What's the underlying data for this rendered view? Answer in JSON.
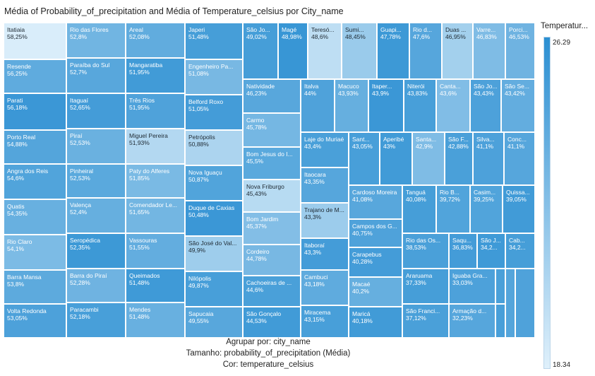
{
  "title": "Média of Probability_of_precipitation and Média of Temperature_celsius por City_name",
  "caption": {
    "group_by": "Agrupar por: city_name",
    "size": "Tamanho: probability_of_precipitation (Média)",
    "color": "Cor: temperature_celsius"
  },
  "legend": {
    "title": "Temperatur...",
    "max_label": "26.29",
    "min_label": "18.34",
    "color_high": "#2b8fd2",
    "color_low": "#dff0fb"
  },
  "chart_data": {
    "type": "treemap",
    "title": "Média of Probability_of_precipitation and Média of Temperature_celsius por City_name",
    "size_measure": "probability_of_precipitation (Média)",
    "color_measure": "temperature_celsius",
    "color_range": [
      18.34,
      26.29
    ],
    "items": [
      {
        "name": "Itatiaia",
        "label": "Itatiaia",
        "value_label": "58,25%",
        "value": 58.25,
        "color": 18.6
      },
      {
        "name": "Resende",
        "label": "Resende",
        "value_label": "56,25%",
        "value": 56.25,
        "color": 24.0
      },
      {
        "name": "Parati",
        "label": "Parati",
        "value_label": "56,18%",
        "value": 56.18,
        "color": 25.6
      },
      {
        "name": "Porto Real",
        "label": "Porto Real",
        "value_label": "54,88%",
        "value": 54.88,
        "color": 24.5
      },
      {
        "name": "Angra dos Reis",
        "label": "Angra dos Reis",
        "value_label": "54,6%",
        "value": 54.6,
        "color": 24.6
      },
      {
        "name": "Quatis",
        "label": "Quatis",
        "value_label": "54,35%",
        "value": 54.35,
        "color": 23.6
      },
      {
        "name": "Rio Claro",
        "label": "Rio Claro",
        "value_label": "54,1%",
        "value": 54.1,
        "color": 22.7
      },
      {
        "name": "Barra Mansa",
        "label": "Barra Mansa",
        "value_label": "53,8%",
        "value": 53.8,
        "color": 24.1
      },
      {
        "name": "Volta Redonda",
        "label": "Volta Redonda",
        "value_label": "53,05%",
        "value": 53.05,
        "color": 24.8
      },
      {
        "name": "Rio das Flores",
        "label": "Rio das Flores",
        "value_label": "52,8%",
        "value": 52.8,
        "color": 23.2
      },
      {
        "name": "Paraíba do Sul",
        "label": "Paraíba do Sul",
        "value_label": "52,7%",
        "value": 52.7,
        "color": 24.3
      },
      {
        "name": "Itaguaí",
        "label": "Itaguaí",
        "value_label": "52,65%",
        "value": 52.65,
        "color": 25.2
      },
      {
        "name": "Piraí",
        "label": "Piraí",
        "value_label": "52,53%",
        "value": 52.53,
        "color": 23.5
      },
      {
        "name": "Pinheiral",
        "label": "Pinheiral",
        "value_label": "52,53%",
        "value": 52.53,
        "color": 24.2
      },
      {
        "name": "Valença",
        "label": "Valença",
        "value_label": "52,4%",
        "value": 52.4,
        "color": 23.7
      },
      {
        "name": "Seropédica",
        "label": "Seropédica",
        "value_label": "52,35%",
        "value": 52.35,
        "color": 25.5
      },
      {
        "name": "Barra do Piraí",
        "label": "Barra do Piraí",
        "value_label": "52,28%",
        "value": 52.28,
        "color": 23.3
      },
      {
        "name": "Paracambi",
        "label": "Paracambi",
        "value_label": "52,18%",
        "value": 52.18,
        "color": 25.0
      },
      {
        "name": "Areal",
        "label": "Areal",
        "value_label": "52,08%",
        "value": 52.08,
        "color": 23.9
      },
      {
        "name": "Mangaratiba",
        "label": "Mangaratiba",
        "value_label": "51,95%",
        "value": 51.95,
        "color": 25.3
      },
      {
        "name": "Três Rios",
        "label": "Três Rios",
        "value_label": "51,95%",
        "value": 51.95,
        "color": 24.7
      },
      {
        "name": "Miguel Pereira",
        "label": "Miguel Pereira",
        "value_label": "51,93%",
        "value": 51.93,
        "color": 20.3
      },
      {
        "name": "Paty do Alferes",
        "label": "Paty do Alferes",
        "value_label": "51,85%",
        "value": 51.85,
        "color": 22.8
      },
      {
        "name": "Comendador Levy Gasparian",
        "label": "Comendador Le...",
        "value_label": "51,65%",
        "value": 51.65,
        "color": 23.1
      },
      {
        "name": "Vassouras",
        "label": "Vassouras",
        "value_label": "51,55%",
        "value": 51.55,
        "color": 23.8
      },
      {
        "name": "Queimados",
        "label": "Queimados",
        "value_label": "51,48%",
        "value": 51.48,
        "color": 25.4
      },
      {
        "name": "Mendes",
        "label": "Mendes",
        "value_label": "51,48%",
        "value": 51.48,
        "color": 23.6
      },
      {
        "name": "Japeri",
        "label": "Japeri",
        "value_label": "51,48%",
        "value": 51.48,
        "color": 25.1
      },
      {
        "name": "Engenheiro Paulo de Frontin",
        "label": "Engenheiro Pa...",
        "value_label": "51,08%",
        "value": 51.08,
        "color": 22.9
      },
      {
        "name": "Belford Roxo",
        "label": "Belford Roxo",
        "value_label": "51,05%",
        "value": 51.05,
        "color": 25.2
      },
      {
        "name": "Petrópolis",
        "label": "Petrópolis",
        "value_label": "50,88%",
        "value": 50.88,
        "color": 20.6
      },
      {
        "name": "Nova Iguaçu",
        "label": "Nova Iguaçu",
        "value_label": "50,87%",
        "value": 50.87,
        "color": 24.6
      },
      {
        "name": "Duque de Caxias",
        "label": "Duque de Caxias",
        "value_label": "50,48%",
        "value": 50.48,
        "color": 25.6
      },
      {
        "name": "São José do Vale do Rio Preto",
        "label": "São José do Val...",
        "value_label": "49,9%",
        "value": 49.9,
        "color": 21.2
      },
      {
        "name": "Nilópolis",
        "label": "Nilópolis",
        "value_label": "49,87%",
        "value": 49.87,
        "color": 25.0
      },
      {
        "name": "Sapucaia",
        "label": "Sapucaia",
        "value_label": "49,55%",
        "value": 49.55,
        "color": 24.3
      },
      {
        "name": "São João de Meriti",
        "label": "São Jo...",
        "value_label": "49,02%",
        "value": 49.02,
        "color": 25.1
      },
      {
        "name": "Magé",
        "label": "Magé",
        "value_label": "48,98%",
        "value": 48.98,
        "color": 25.7
      },
      {
        "name": "Teresópolis",
        "label": "Teresó...",
        "value_label": "48,6%",
        "value": 48.6,
        "color": 19.8
      },
      {
        "name": "Sumidouro",
        "label": "Sumi...",
        "value_label": "48,45%",
        "value": 48.45,
        "color": 21.4
      },
      {
        "name": "Guapimirim",
        "label": "Guapi...",
        "value_label": "47,78%",
        "value": 47.78,
        "color": 25.5
      },
      {
        "name": "Rio de Janeiro",
        "label": "Rio d...",
        "value_label": "47,6%",
        "value": 47.6,
        "color": 24.4
      },
      {
        "name": "Duas Barras",
        "label": "Duas ...",
        "value_label": "46,95%",
        "value": 46.95,
        "color": 21.0
      },
      {
        "name": "Varre-Sai",
        "label": "Varre...",
        "value_label": "46,83%",
        "value": 46.83,
        "color": 22.6
      },
      {
        "name": "Porciúncula",
        "label": "Porci...",
        "value_label": "46,53%",
        "value": 46.53,
        "color": 23.3
      },
      {
        "name": "Natividade",
        "label": "Natividade",
        "value_label": "46,23%",
        "value": 46.23,
        "color": 24.3
      },
      {
        "name": "Carmo",
        "label": "Carmo",
        "value_label": "45,78%",
        "value": 45.78,
        "color": 23.0
      },
      {
        "name": "Bom Jesus do Itabapoana",
        "label": "Bom Jesus do I...",
        "value_label": "45,5%",
        "value": 45.5,
        "color": 24.2
      },
      {
        "name": "Nova Friburgo",
        "label": "Nova Friburgo",
        "value_label": "45,43%",
        "value": 45.43,
        "color": 20.1
      },
      {
        "name": "Bom Jardim",
        "label": "Bom Jardim",
        "value_label": "45,37%",
        "value": 45.37,
        "color": 22.4
      },
      {
        "name": "Cordeiro",
        "label": "Cordeiro",
        "value_label": "44,78%",
        "value": 44.78,
        "color": 22.9
      },
      {
        "name": "Cachoeiras de Macacu",
        "label": "Cachoeiras de ...",
        "value_label": "44,6%",
        "value": 44.6,
        "color": 24.9
      },
      {
        "name": "São Gonçalo",
        "label": "São Gonçalo",
        "value_label": "44,53%",
        "value": 44.53,
        "color": 25.3
      },
      {
        "name": "Italva",
        "label": "Italva",
        "value_label": "44%",
        "value": 44.0,
        "color": 24.7
      },
      {
        "name": "Macuco",
        "label": "Macuco",
        "value_label": "43,93%",
        "value": 43.93,
        "color": 23.7
      },
      {
        "name": "Itaperuna",
        "label": "Itaper...",
        "value_label": "43,9%",
        "value": 43.9,
        "color": 25.6
      },
      {
        "name": "Niterói",
        "label": "Niterói",
        "value_label": "43,83%",
        "value": 43.83,
        "color": 25.0
      },
      {
        "name": "Cantagalo",
        "label": "Canta...",
        "value_label": "43,6%",
        "value": 43.6,
        "color": 22.5
      },
      {
        "name": "São José de Ubá",
        "label": "São Jo...",
        "value_label": "43,43%",
        "value": 43.43,
        "color": 24.8
      },
      {
        "name": "São Sebastião do Alto",
        "label": "São Se...",
        "value_label": "43,42%",
        "value": 43.42,
        "color": 23.8
      },
      {
        "name": "Laje do Muriaé",
        "label": "Laje do Muriaé",
        "value_label": "43,4%",
        "value": 43.4,
        "color": 24.9
      },
      {
        "name": "Itaocara",
        "label": "Itaocara",
        "value_label": "43,35%",
        "value": 43.35,
        "color": 24.4
      },
      {
        "name": "Trajano de Moraes",
        "label": "Trajano de M...",
        "value_label": "43,3%",
        "value": 43.3,
        "color": 21.3
      },
      {
        "name": "Itaboraí",
        "label": "Itaboraí",
        "value_label": "43,3%",
        "value": 43.3,
        "color": 25.2
      },
      {
        "name": "Cambuci",
        "label": "Cambuci",
        "value_label": "43,18%",
        "value": 43.18,
        "color": 24.0
      },
      {
        "name": "Miracema",
        "label": "Miracema",
        "value_label": "43,15%",
        "value": 43.15,
        "color": 25.0
      },
      {
        "name": "Santo Antônio de Pádua",
        "label": "Sant...",
        "value_label": "43,05%",
        "value": 43.05,
        "color": 25.0
      },
      {
        "name": "Aperibé",
        "label": "Aperibé",
        "value_label": "43%",
        "value": 43.0,
        "color": 25.3
      },
      {
        "name": "Santa Maria Madalena",
        "label": "Santa...",
        "value_label": "42,9%",
        "value": 42.9,
        "color": 22.6
      },
      {
        "name": "São Fidélis",
        "label": "São F...",
        "value_label": "42,88%",
        "value": 42.88,
        "color": 24.9
      },
      {
        "name": "Silva Jardim",
        "label": "Silva...",
        "value_label": "41,1%",
        "value": 41.1,
        "color": 24.8
      },
      {
        "name": "Conceição de Macabu",
        "label": "Conc...",
        "value_label": "41,1%",
        "value": 41.1,
        "color": 24.4
      },
      {
        "name": "Cardoso Moreira",
        "label": "Cardoso Moreira",
        "value_label": "41,08%",
        "value": 41.08,
        "color": 24.3
      },
      {
        "name": "Tanguá",
        "label": "Tanguá",
        "value_label": "40,08%",
        "value": 40.08,
        "color": 25.1
      },
      {
        "name": "Rio Bonito",
        "label": "Rio B...",
        "value_label": "39,72%",
        "value": 39.72,
        "color": 24.6
      },
      {
        "name": "Casimiro de Abreu",
        "label": "Casim...",
        "value_label": "39,25%",
        "value": 39.25,
        "color": 24.6
      },
      {
        "name": "Quissamã",
        "label": "Quissa...",
        "value_label": "39,05%",
        "value": 39.05,
        "color": 25.3
      },
      {
        "name": "Campos dos Goytacazes",
        "label": "Campos dos G...",
        "value_label": "40,75%",
        "value": 40.75,
        "color": 24.7
      },
      {
        "name": "Carapebus",
        "label": "Carapebus",
        "value_label": "40,28%",
        "value": 40.28,
        "color": 25.2
      },
      {
        "name": "Macaé",
        "label": "Macaé",
        "value_label": "40,2%",
        "value": 40.2,
        "color": 23.7
      },
      {
        "name": "Maricá",
        "label": "Maricá",
        "value_label": "40,18%",
        "value": 40.18,
        "color": 25.3
      },
      {
        "name": "Rio das Ostras",
        "label": "Rio das Os...",
        "value_label": "38,53%",
        "value": 38.53,
        "color": 24.9
      },
      {
        "name": "Saquarema",
        "label": "Saqu...",
        "value_label": "36,83%",
        "value": 36.83,
        "color": 25.2
      },
      {
        "name": "São João da Barra",
        "label": "São J...",
        "value_label": "34,2...",
        "value": 34.2,
        "color": 25.4
      },
      {
        "name": "Cabo Frio",
        "label": "Cab...",
        "value_label": "34,2...",
        "value": 34.2,
        "color": 25.1
      },
      {
        "name": "Araruama",
        "label": "Araruama",
        "value_label": "37,33%",
        "value": 37.33,
        "color": 25.1
      },
      {
        "name": "Iguaba Grande",
        "label": "Iguaba Gra...",
        "value_label": "33,03%",
        "value": 33.03,
        "color": 24.8
      },
      {
        "name": "São Francisco de Itabapoana",
        "label": "São Franci...",
        "value_label": "37,12%",
        "value": 37.12,
        "color": 24.9
      },
      {
        "name": "Armação dos Búzios",
        "label": "Armação d...",
        "value_label": "32,23%",
        "value": 32.23,
        "color": 24.4
      },
      {
        "name": "",
        "label": "",
        "value_label": "",
        "value": null,
        "color": 24.9
      },
      {
        "name": "",
        "label": "",
        "value_label": "",
        "value": null,
        "color": 25.0
      },
      {
        "name": "",
        "label": "",
        "value_label": "",
        "value": null,
        "color": 24.5
      },
      {
        "name": "",
        "label": "",
        "value_label": "",
        "value": null,
        "color": 24.7
      }
    ]
  }
}
